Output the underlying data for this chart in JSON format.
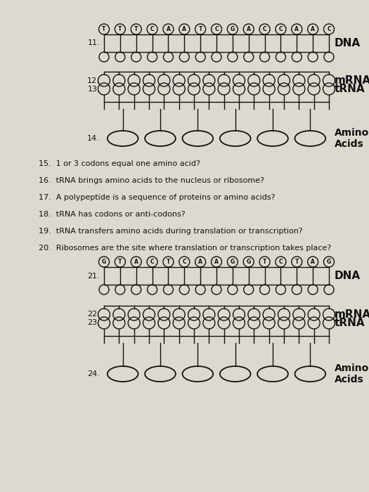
{
  "bg_color": "#ddd9d0",
  "text_color": "#111111",
  "dna1_letters": [
    "T",
    "T",
    "T",
    "C",
    "A",
    "A",
    "T",
    "C",
    "G",
    "A",
    "C",
    "C",
    "A",
    "A",
    "C"
  ],
  "dna2_letters": [
    "G",
    "T",
    "A",
    "C",
    "T",
    "C",
    "A",
    "A",
    "G",
    "G",
    "T",
    "C",
    "T",
    "A",
    "G"
  ],
  "n_dna": 15,
  "n_mrna": 16,
  "n_trna": 16,
  "n_amino": 6,
  "questions": [
    {
      "num": "15.",
      "text": "1 or 3 codons equal one amino acid?",
      "ul": []
    },
    {
      "num": "16.",
      "text": "tRNA brings amino acids to the nucleus or ribosome?",
      "ul": [
        "nucleus",
        "ribosome"
      ]
    },
    {
      "num": "17.",
      "text": "A polypeptide is a sequence of proteins or amino acids?",
      "ul": [
        "proteins",
        "amino acids"
      ]
    },
    {
      "num": "18.",
      "text": "tRNA has codons or anti-codons?",
      "ul": [
        "codons",
        "anti-codons"
      ]
    },
    {
      "num": "19.",
      "text": "tRNA transfers amino acids during translation or transcription?",
      "ul": [
        "translation",
        "transcription"
      ]
    },
    {
      "num": "20.",
      "text": "Ribosomes are the site where translation or transcription takes place?",
      "ul": [
        "translation",
        "transcription"
      ]
    }
  ]
}
